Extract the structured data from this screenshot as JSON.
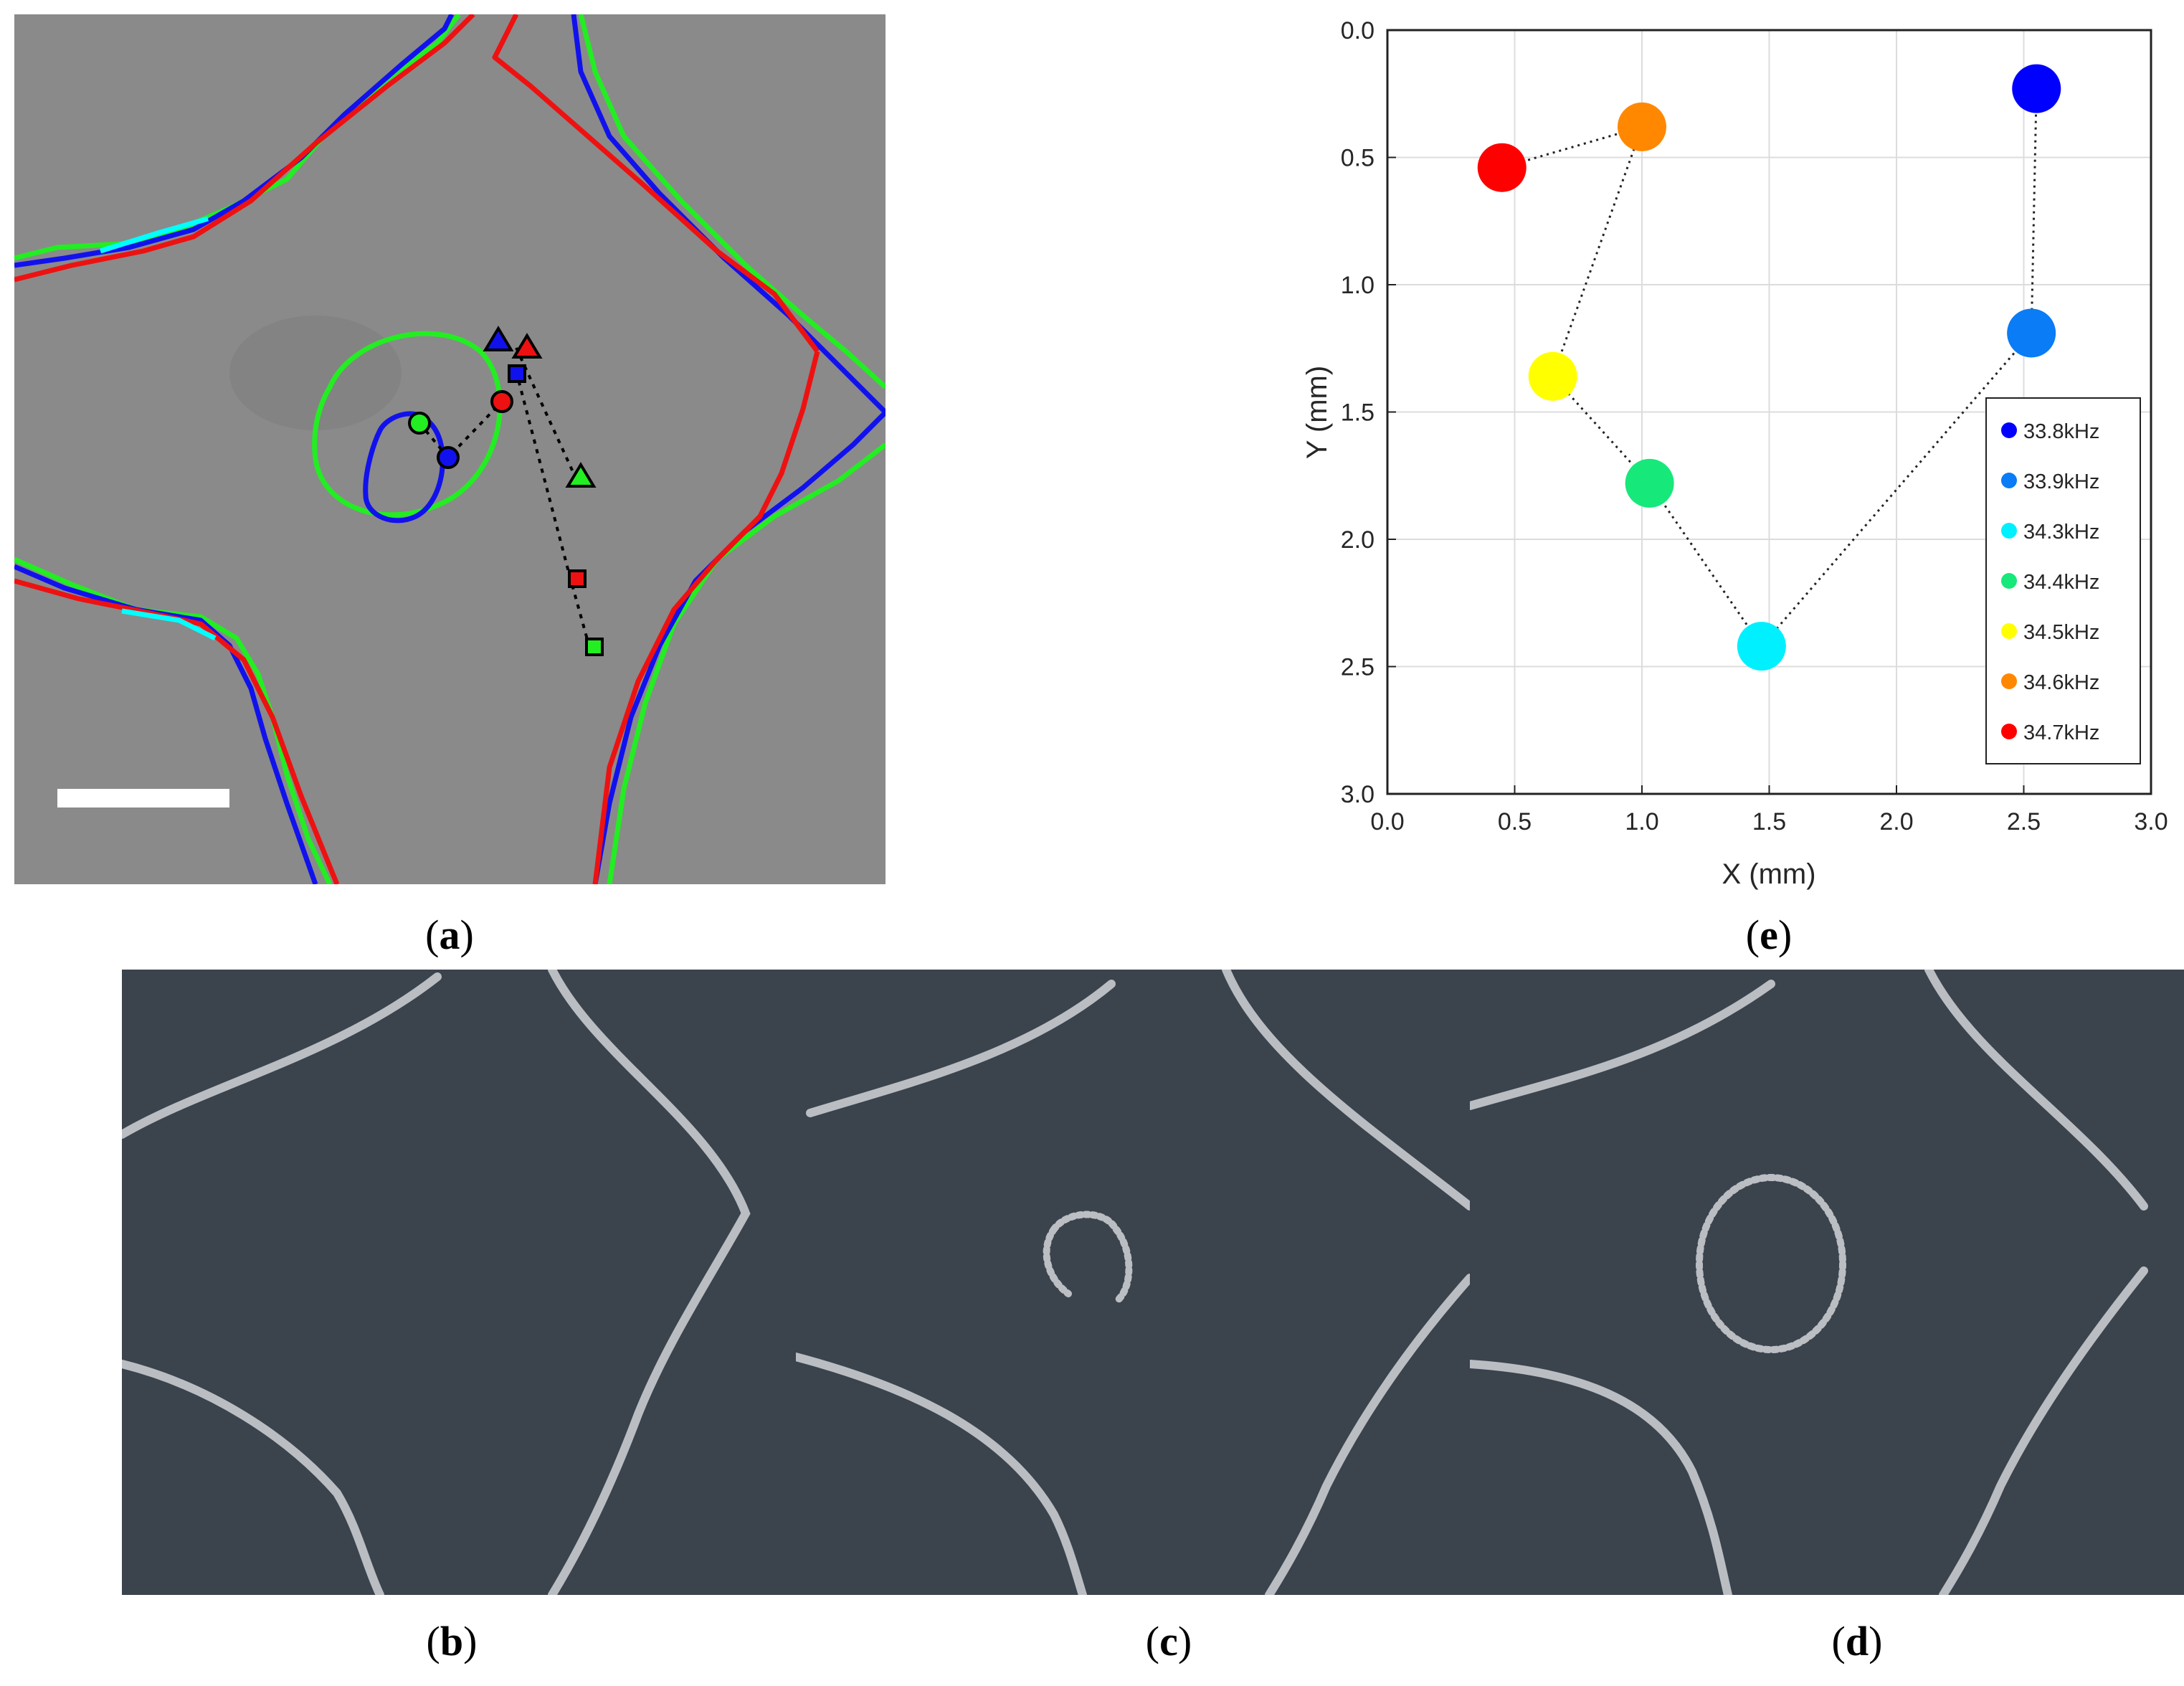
{
  "captions": {
    "a": "a",
    "b": "b",
    "c": "c",
    "d": "d",
    "e": "e"
  },
  "chart_data": {
    "type": "scatter",
    "title": "",
    "xlabel": "X (mm)",
    "ylabel": "Y (mm)",
    "xlim": [
      0.0,
      3.0
    ],
    "ylim": [
      0.0,
      3.0
    ],
    "y_inverted": true,
    "grid": true,
    "x_ticks": [
      "0.0",
      "0.5",
      "1.0",
      "1.5",
      "2.0",
      "2.5",
      "3.0"
    ],
    "y_ticks": [
      "0.0",
      "0.5",
      "1.0",
      "1.5",
      "2.0",
      "2.5",
      "3.0"
    ],
    "legend_position": "bottom-right",
    "connected": "dotted",
    "series": [
      {
        "name": "33.8kHz",
        "x": 2.55,
        "y": 0.23,
        "color": "#0000ff"
      },
      {
        "name": "33.9kHz",
        "x": 2.53,
        "y": 1.19,
        "color": "#0a7cf5"
      },
      {
        "name": "34.3kHz",
        "x": 1.47,
        "y": 2.42,
        "color": "#00f0ff"
      },
      {
        "name": "34.4kHz",
        "x": 1.03,
        "y": 1.78,
        "color": "#17e87a"
      },
      {
        "name": "34.5kHz",
        "x": 0.65,
        "y": 1.36,
        "color": "#ffff00"
      },
      {
        "name": "34.6kHz",
        "x": 1.0,
        "y": 0.38,
        "color": "#ff8800"
      },
      {
        "name": "34.7kHz",
        "x": 0.45,
        "y": 0.54,
        "color": "#ff0000"
      }
    ]
  }
}
